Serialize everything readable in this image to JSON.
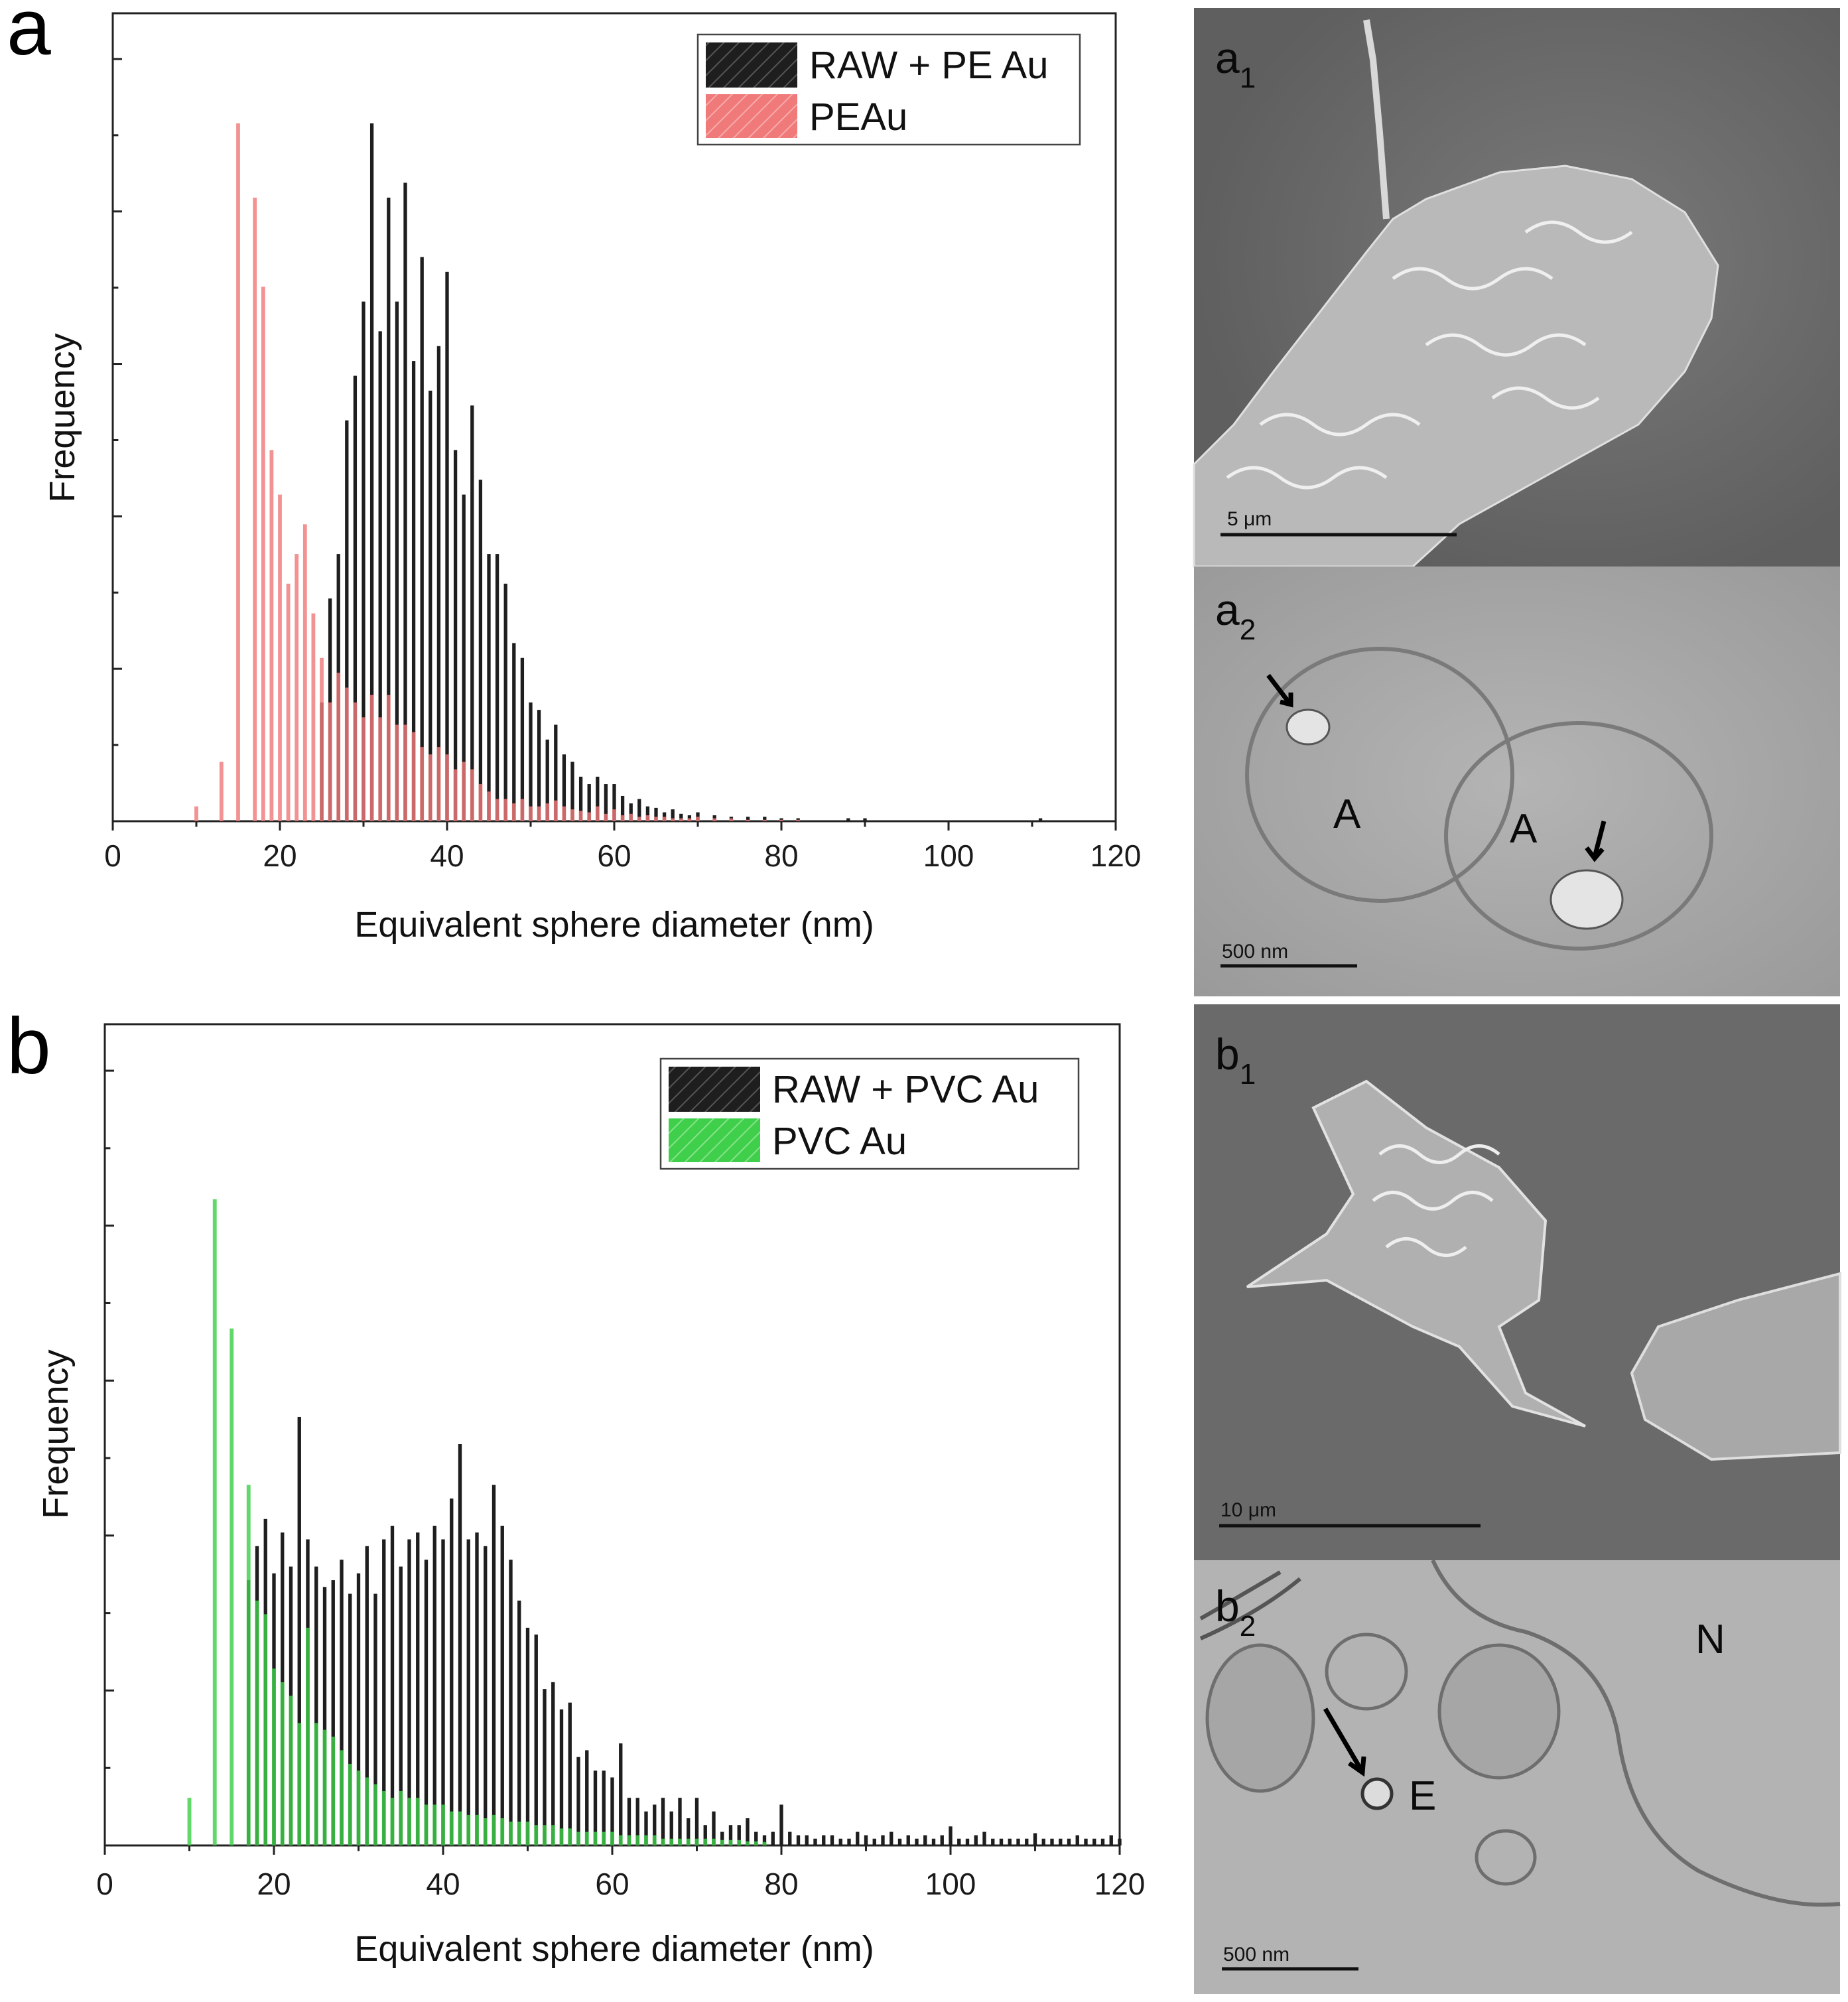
{
  "panels": {
    "a": {
      "letter": "a",
      "legend": [
        "RAW + PE Au",
        "PEAu"
      ],
      "micrographs": {
        "top_label_main": "a",
        "top_label_sub": "1",
        "top_scale": "5 μm",
        "bottom_label_main": "a",
        "bottom_label_sub": "2",
        "bottom_scale": "500 nm",
        "bottom_annotations": [
          "A",
          "A"
        ]
      }
    },
    "b": {
      "letter": "b",
      "legend": [
        "RAW + PVC Au",
        "PVC Au"
      ],
      "micrographs": {
        "top_label_main": "b",
        "top_label_sub": "1",
        "top_scale": "10 μm",
        "bottom_label_main": "b",
        "bottom_label_sub": "2",
        "bottom_scale": "500 nm",
        "bottom_annotations": [
          "N",
          "E"
        ]
      }
    }
  },
  "colors": {
    "raw": "#1e1e1e",
    "pe": "#f07a7a",
    "pvc": "#3fcf4a",
    "sem_bg": "#6e6e6e",
    "tem_bg": "#a8a8a8"
  },
  "chart_data": [
    {
      "id": "a",
      "type": "bar",
      "xlabel": "Equivalent sphere diameter (nm)",
      "ylabel": "Frequency",
      "xlim": [
        0,
        120
      ],
      "xticks": [
        "0",
        "20",
        "40",
        "60",
        "80",
        "100",
        "120"
      ],
      "ylim": [
        0,
        47
      ],
      "series": [
        {
          "name": "RAW + PE Au",
          "color": "#1e1e1e",
          "x": [
            25,
            26,
            27,
            28,
            29,
            30,
            31,
            32,
            33,
            34,
            35,
            36,
            37,
            38,
            39,
            40,
            41,
            42,
            43,
            44,
            45,
            46,
            47,
            48,
            49,
            50,
            51,
            52,
            53,
            54,
            55,
            56,
            57,
            58,
            59,
            60,
            61,
            62,
            63,
            64,
            65,
            66,
            67,
            68,
            69,
            70,
            72,
            74,
            76,
            78,
            80,
            82,
            88,
            90,
            111
          ],
          "values": [
            8,
            15,
            18,
            27,
            30,
            35,
            47,
            33,
            42,
            35,
            43,
            31,
            38,
            29,
            32,
            37,
            25,
            22,
            28,
            23,
            18,
            18,
            16,
            12,
            11,
            8,
            7.5,
            5.5,
            6.5,
            4.5,
            4,
            3,
            2.5,
            3,
            2.5,
            2.5,
            1.7,
            1.2,
            1.5,
            1,
            0.9,
            0.6,
            0.8,
            0.5,
            0.4,
            0.6,
            0.4,
            0.3,
            0.3,
            0.3,
            0.2,
            0.2,
            0.2,
            0.2,
            0.2
          ]
        },
        {
          "name": "PEAu",
          "color": "#f07a7a",
          "x": [
            10,
            13,
            15,
            17,
            18,
            19,
            20,
            21,
            22,
            23,
            24,
            25,
            26,
            27,
            28,
            29,
            30,
            31,
            32,
            33,
            34,
            35,
            36,
            37,
            38,
            39,
            40,
            41,
            42,
            43,
            44,
            45,
            46,
            47,
            48,
            49,
            50,
            51,
            52,
            53,
            54,
            55,
            56,
            57,
            58,
            59,
            60,
            61,
            62,
            63,
            64,
            65,
            66,
            67,
            68,
            69,
            70,
            72,
            74,
            76,
            78,
            80,
            82
          ],
          "values": [
            1,
            4,
            47,
            42,
            36,
            25,
            22,
            16,
            18,
            20,
            14,
            11,
            8,
            10,
            9,
            8,
            7,
            8.5,
            7,
            8.5,
            6.5,
            6.5,
            6,
            5,
            4.5,
            5,
            4.5,
            3.5,
            4,
            3.5,
            2.5,
            2,
            1.5,
            1.5,
            1.2,
            1.5,
            1,
            1,
            1.2,
            1.4,
            1,
            0.8,
            0.7,
            0.6,
            1,
            0.5,
            0.8,
            0.4,
            0.5,
            0.3,
            0.4,
            0.3,
            0.3,
            0.2,
            0.2,
            0.2,
            0.3,
            0.2,
            0.2,
            0.1,
            0.1,
            0.1,
            0.1
          ]
        }
      ]
    },
    {
      "id": "b",
      "type": "bar",
      "xlabel": "Equivalent sphere diameter (nm)",
      "ylabel": "Frequency",
      "xlim": [
        0,
        120
      ],
      "xticks": [
        "0",
        "20",
        "40",
        "60",
        "80",
        "100",
        "120"
      ],
      "ylim": [
        0,
        110
      ],
      "series": [
        {
          "name": "RAW + PVC Au",
          "color": "#1e1e1e",
          "x": [
            17,
            18,
            19,
            20,
            21,
            22,
            23,
            24,
            25,
            26,
            27,
            28,
            29,
            30,
            31,
            32,
            33,
            34,
            35,
            36,
            37,
            38,
            39,
            40,
            41,
            42,
            43,
            44,
            45,
            46,
            47,
            48,
            49,
            50,
            51,
            52,
            53,
            54,
            55,
            56,
            57,
            58,
            59,
            60,
            61,
            62,
            63,
            64,
            65,
            66,
            67,
            68,
            69,
            70,
            71,
            72,
            73,
            74,
            75,
            76,
            77,
            78,
            79,
            80,
            81,
            82,
            83,
            84,
            85,
            86,
            87,
            88,
            89,
            90,
            91,
            92,
            93,
            94,
            95,
            96,
            97,
            98,
            99,
            100,
            101,
            102,
            103,
            104,
            105,
            106,
            107,
            108,
            109,
            110,
            111,
            112,
            113,
            114,
            115,
            116,
            117,
            118,
            119,
            120
          ],
          "values": [
            39,
            44,
            48,
            40,
            46,
            41,
            63,
            45,
            41,
            38,
            39,
            42,
            37,
            40,
            44,
            37,
            45,
            47,
            41,
            45,
            46,
            42,
            47,
            45,
            51,
            59,
            45,
            46,
            44,
            53,
            47,
            42,
            36,
            32,
            31,
            23,
            24,
            20,
            21,
            13,
            14,
            11,
            11,
            10,
            15,
            7,
            7,
            5,
            6,
            7,
            5,
            7,
            4,
            7,
            3,
            5,
            2,
            3,
            3,
            4,
            2,
            1.5,
            2,
            6,
            2,
            1.5,
            1.5,
            1,
            1.5,
            1.5,
            1,
            1,
            2,
            1.5,
            1,
            1.5,
            2,
            1,
            1.5,
            1,
            1.5,
            1,
            1.5,
            2.8,
            1,
            1,
            1.5,
            2,
            1,
            1,
            1,
            1,
            1,
            1.8,
            1,
            1,
            1,
            1,
            1.5,
            1,
            1,
            1,
            1.5,
            1
          ]
        },
        {
          "name": "PVC Au",
          "color": "#3fcf4a",
          "x": [
            10,
            13,
            15,
            17,
            18,
            19,
            20,
            21,
            22,
            23,
            24,
            25,
            26,
            27,
            28,
            29,
            30,
            31,
            32,
            33,
            34,
            35,
            36,
            37,
            38,
            39,
            40,
            41,
            42,
            43,
            44,
            45,
            46,
            47,
            48,
            49,
            50,
            51,
            52,
            53,
            54,
            55,
            56,
            57,
            58,
            59,
            60,
            61,
            62,
            63,
            64,
            65,
            66,
            67,
            68,
            69,
            70,
            71,
            72,
            73,
            74,
            75,
            76,
            77,
            78
          ],
          "values": [
            7,
            95,
            76,
            53,
            36,
            34,
            26,
            24,
            22,
            18,
            32,
            18,
            17,
            16,
            14,
            12,
            11,
            10,
            9,
            8,
            7,
            8,
            7,
            7,
            6,
            6,
            6,
            5,
            5,
            4.5,
            4.5,
            4,
            4.5,
            4,
            3.5,
            3.5,
            3.5,
            3,
            3,
            3,
            2.5,
            2.5,
            2,
            2,
            2,
            2,
            2,
            1.5,
            1.5,
            1.5,
            1.5,
            1.5,
            1,
            1,
            1,
            1,
            1,
            1,
            1,
            0.8,
            0.8,
            0.8,
            0.6,
            0.6,
            0.5
          ]
        }
      ]
    }
  ]
}
